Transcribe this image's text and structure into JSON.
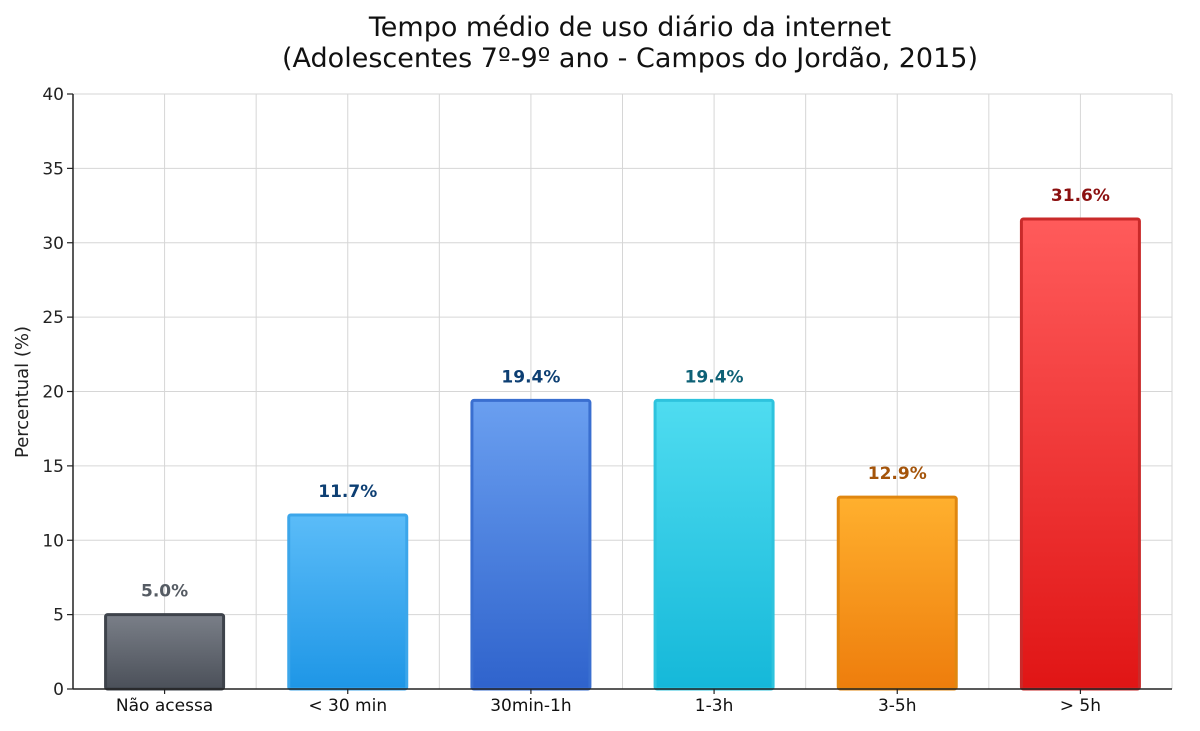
{
  "chart_data": {
    "type": "bar",
    "title_lines": [
      "Tempo médio de uso diário da internet",
      "(Adolescentes 7º-9º ano - Campos do Jordão, 2015)"
    ],
    "xlabel": "",
    "ylabel": "Percentual (%)",
    "ylim": [
      0,
      40
    ],
    "yticks": [
      0,
      5,
      10,
      15,
      20,
      25,
      30,
      35,
      40
    ],
    "grid": true,
    "categories": [
      "Não acessa",
      "< 30 min",
      "30min-1h",
      "1-3h",
      "3-5h",
      "> 5h"
    ],
    "values": [
      5.0,
      11.7,
      19.4,
      19.4,
      12.9,
      31.6
    ],
    "data_labels": [
      "5.0%",
      "11.7%",
      "19.4%",
      "19.4%",
      "12.9%",
      "31.6%"
    ],
    "bar_colors": [
      {
        "top": "#7a7f88",
        "bottom": "#4b5059",
        "stroke": "#3e434b",
        "label": "#555b63"
      },
      {
        "top": "#5bbcf8",
        "bottom": "#1e96e6",
        "stroke": "#3ca6ea",
        "label": "#0d3f73"
      },
      {
        "top": "#6a9ff0",
        "bottom": "#2f63cc",
        "stroke": "#3a6fd0",
        "label": "#0d3f73"
      },
      {
        "top": "#4fdcf0",
        "bottom": "#15b8d9",
        "stroke": "#2ec3dd",
        "label": "#0e6176"
      },
      {
        "top": "#ffb02e",
        "bottom": "#ee7d0c",
        "stroke": "#e08710",
        "label": "#a4540a"
      },
      {
        "top": "#ff5b5b",
        "bottom": "#e01515",
        "stroke": "#c92a2a",
        "label": "#8b1010"
      }
    ]
  }
}
